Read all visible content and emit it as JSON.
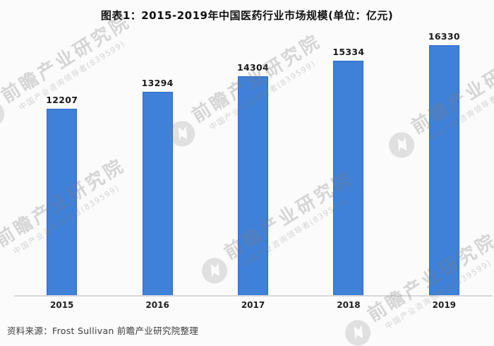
{
  "chart_data": {
    "type": "bar",
    "title": "图表1：2015-2019年中国医药行业市场规模(单位：亿元)",
    "categories": [
      "2015",
      "2016",
      "2017",
      "2018",
      "2019"
    ],
    "values": [
      12207,
      13294,
      14304,
      15334,
      16330
    ],
    "xlabel": "",
    "ylabel": "",
    "ylim": [
      0,
      16330
    ],
    "grid": false,
    "legend": "none",
    "data_labels": true,
    "bar_color": "#3f80d8",
    "bar_border_color": "#2f6cc6",
    "axis_line_color": "#d8d8d8"
  },
  "source": "资料来源：Frost Sullivan 前瞻产业研究院整理",
  "watermark": {
    "main_text": "前瞻产业研究院",
    "sub_text": "中国产业咨询领导者(839599)",
    "logo": "qianzhan-logo-icon",
    "color": "#dadada"
  }
}
